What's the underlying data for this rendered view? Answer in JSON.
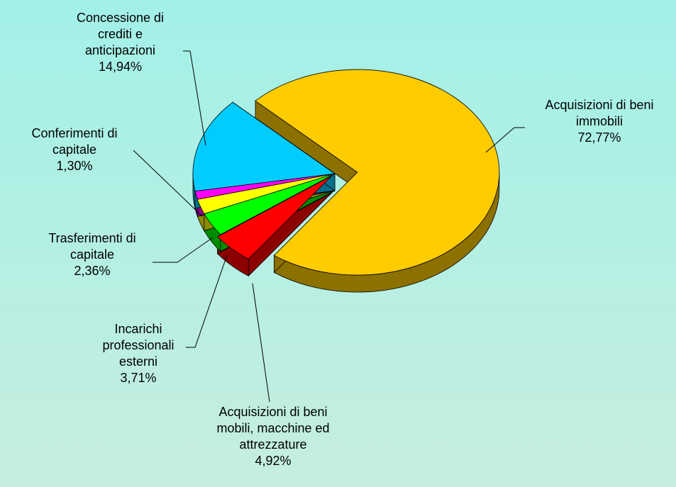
{
  "chart_data": {
    "type": "pie",
    "categories": [
      "Acquisizioni di beni immobili",
      "Acquisizioni di beni mobili, macchine ed attrezzature",
      "Incarichi professionali esterni",
      "Trasferimenti di capitale",
      "Conferimenti di capitale",
      "Concessione di crediti e anticipazioni"
    ],
    "values": [
      72.77,
      4.92,
      3.71,
      2.36,
      1.3,
      14.94
    ],
    "value_labels": [
      "72,77%",
      "4,92%",
      "3,71%",
      "2,36%",
      "1,30%",
      "14,94%"
    ],
    "colors": [
      "#FFCC00",
      "#FF0000",
      "#00FF00",
      "#FFFF00",
      "#FF00FF",
      "#00CCFF"
    ]
  }
}
